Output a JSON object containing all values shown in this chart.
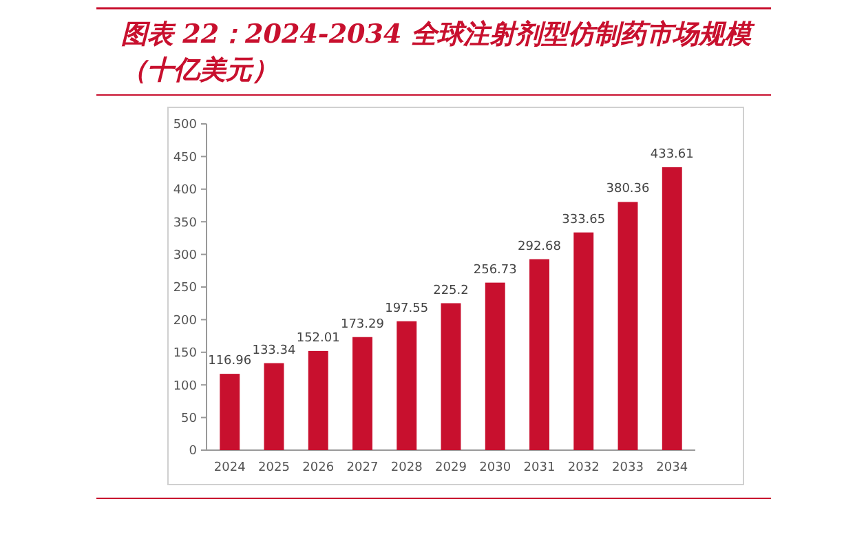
{
  "chart_data": {
    "type": "bar",
    "title": "图表 22：2024-2034 全球注射剂型仿制药市场规模（十亿美元）",
    "categories": [
      "2024",
      "2025",
      "2026",
      "2027",
      "2028",
      "2029",
      "2030",
      "2031",
      "2032",
      "2033",
      "2034"
    ],
    "values": [
      116.96,
      133.34,
      152.01,
      173.29,
      197.55,
      225.2,
      256.73,
      292.68,
      333.65,
      380.36,
      433.61
    ],
    "value_labels": [
      "116.96",
      "133.34",
      "152.01",
      "173.29",
      "197.55",
      "225.2",
      "256.73",
      "292.68",
      "333.65",
      "380.36",
      "433.61"
    ],
    "color": "#c8102e",
    "ylim": [
      0,
      500
    ],
    "yticks": [
      0,
      50,
      100,
      150,
      200,
      250,
      300,
      350,
      400,
      450,
      500
    ],
    "grid": false
  }
}
